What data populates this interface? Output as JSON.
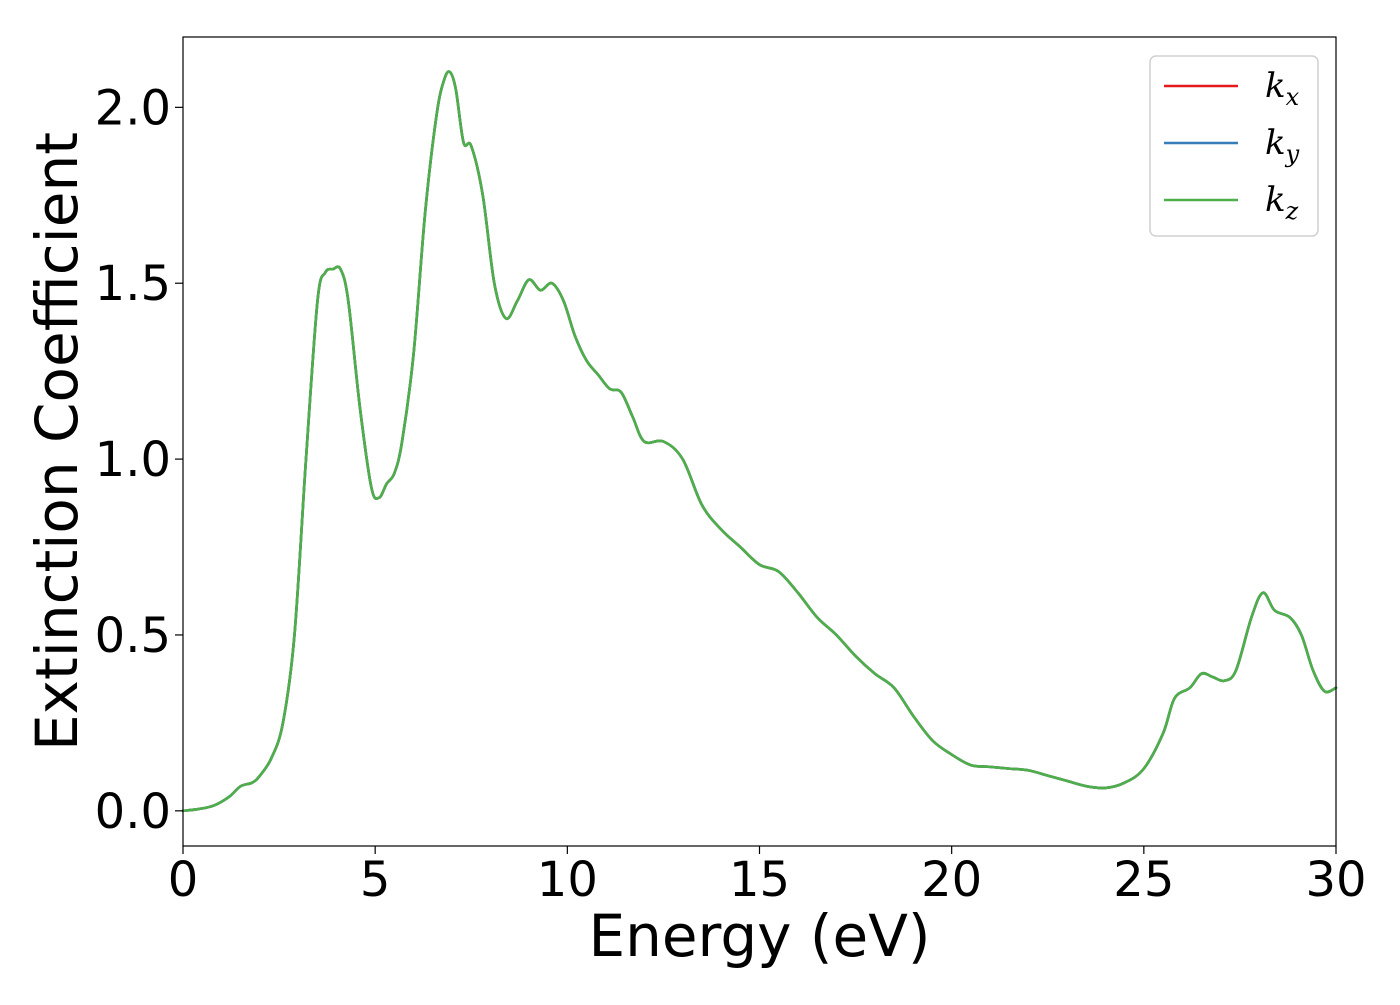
{
  "chart_data": {
    "type": "line",
    "title": "",
    "xlabel": "Energy (eV)",
    "ylabel": "Extinction Coefficient",
    "xlim": [
      0,
      30
    ],
    "ylim": [
      -0.1,
      2.2
    ],
    "grid": false,
    "legend_position": "top-right",
    "x_ticks": [
      0,
      5,
      10,
      15,
      20,
      25,
      30
    ],
    "x_tick_labels": [
      "0",
      "5",
      "10",
      "15",
      "20",
      "25",
      "30"
    ],
    "y_ticks": [
      0.0,
      0.5,
      1.0,
      1.5,
      2.0
    ],
    "y_tick_labels": [
      "0.0",
      "0.5",
      "1.0",
      "1.5",
      "2.0"
    ],
    "colors": {
      "kx": "#e41a1c",
      "ky": "#377eb8",
      "kz": "#4daf4a"
    },
    "x": [
      0,
      0.4,
      0.8,
      1.2,
      1.5,
      1.8,
      2.0,
      2.3,
      2.6,
      2.9,
      3.2,
      3.5,
      3.7,
      3.9,
      4.1,
      4.3,
      4.6,
      4.9,
      5.1,
      5.3,
      5.5,
      5.7,
      6.0,
      6.3,
      6.6,
      6.8,
      6.95,
      7.1,
      7.3,
      7.5,
      7.8,
      8.1,
      8.4,
      8.7,
      9.0,
      9.3,
      9.6,
      9.9,
      10.2,
      10.5,
      10.8,
      11.1,
      11.4,
      11.7,
      12.0,
      12.5,
      13.0,
      13.5,
      14.0,
      14.5,
      15.0,
      15.5,
      16.0,
      16.5,
      17.0,
      17.5,
      18.0,
      18.5,
      19.0,
      19.5,
      20.0,
      20.5,
      21.0,
      21.5,
      22.0,
      22.5,
      23.0,
      23.5,
      24.0,
      24.5,
      25.0,
      25.5,
      25.8,
      26.2,
      26.5,
      26.8,
      27.1,
      27.4,
      27.8,
      28.1,
      28.4,
      28.8,
      29.1,
      29.4,
      29.7,
      30.0
    ],
    "series": [
      {
        "name": "kx",
        "values": [
          0.0,
          0.005,
          0.015,
          0.04,
          0.07,
          0.08,
          0.1,
          0.15,
          0.25,
          0.5,
          1.0,
          1.45,
          1.53,
          1.54,
          1.54,
          1.45,
          1.15,
          0.92,
          0.89,
          0.93,
          0.96,
          1.05,
          1.3,
          1.7,
          1.98,
          2.08,
          2.1,
          2.05,
          1.9,
          1.89,
          1.75,
          1.5,
          1.4,
          1.45,
          1.51,
          1.48,
          1.5,
          1.45,
          1.35,
          1.28,
          1.24,
          1.2,
          1.19,
          1.12,
          1.05,
          1.05,
          1.0,
          0.87,
          0.8,
          0.75,
          0.7,
          0.68,
          0.62,
          0.55,
          0.5,
          0.44,
          0.39,
          0.35,
          0.27,
          0.2,
          0.16,
          0.13,
          0.125,
          0.12,
          0.115,
          0.1,
          0.085,
          0.07,
          0.065,
          0.08,
          0.12,
          0.22,
          0.32,
          0.35,
          0.39,
          0.38,
          0.37,
          0.4,
          0.55,
          0.62,
          0.57,
          0.55,
          0.5,
          0.4,
          0.34,
          0.35
        ]
      },
      {
        "name": "ky",
        "values": [
          0.0,
          0.005,
          0.015,
          0.04,
          0.07,
          0.08,
          0.1,
          0.15,
          0.25,
          0.5,
          1.0,
          1.45,
          1.53,
          1.54,
          1.54,
          1.45,
          1.15,
          0.92,
          0.89,
          0.93,
          0.96,
          1.05,
          1.3,
          1.7,
          1.98,
          2.08,
          2.1,
          2.05,
          1.9,
          1.89,
          1.75,
          1.5,
          1.4,
          1.45,
          1.51,
          1.48,
          1.5,
          1.45,
          1.35,
          1.28,
          1.24,
          1.2,
          1.19,
          1.12,
          1.05,
          1.05,
          1.0,
          0.87,
          0.8,
          0.75,
          0.7,
          0.68,
          0.62,
          0.55,
          0.5,
          0.44,
          0.39,
          0.35,
          0.27,
          0.2,
          0.16,
          0.13,
          0.125,
          0.12,
          0.115,
          0.1,
          0.085,
          0.07,
          0.065,
          0.08,
          0.12,
          0.22,
          0.32,
          0.35,
          0.39,
          0.38,
          0.37,
          0.4,
          0.55,
          0.62,
          0.57,
          0.55,
          0.5,
          0.4,
          0.34,
          0.35
        ]
      },
      {
        "name": "kz",
        "values": [
          0.0,
          0.005,
          0.015,
          0.04,
          0.07,
          0.08,
          0.1,
          0.15,
          0.25,
          0.5,
          1.0,
          1.45,
          1.53,
          1.54,
          1.54,
          1.45,
          1.15,
          0.92,
          0.89,
          0.93,
          0.96,
          1.05,
          1.3,
          1.7,
          1.98,
          2.08,
          2.1,
          2.05,
          1.9,
          1.89,
          1.75,
          1.5,
          1.4,
          1.45,
          1.51,
          1.48,
          1.5,
          1.45,
          1.35,
          1.28,
          1.24,
          1.2,
          1.19,
          1.12,
          1.05,
          1.05,
          1.0,
          0.87,
          0.8,
          0.75,
          0.7,
          0.68,
          0.62,
          0.55,
          0.5,
          0.44,
          0.39,
          0.35,
          0.27,
          0.2,
          0.16,
          0.13,
          0.125,
          0.12,
          0.115,
          0.1,
          0.085,
          0.07,
          0.065,
          0.08,
          0.12,
          0.22,
          0.32,
          0.35,
          0.39,
          0.38,
          0.37,
          0.4,
          0.55,
          0.62,
          0.57,
          0.55,
          0.5,
          0.4,
          0.34,
          0.35
        ]
      }
    ],
    "legend": [
      {
        "base": "k",
        "sub": "x",
        "series": "kx"
      },
      {
        "base": "k",
        "sub": "y",
        "series": "ky"
      },
      {
        "base": "k",
        "sub": "z",
        "series": "kz"
      }
    ]
  }
}
